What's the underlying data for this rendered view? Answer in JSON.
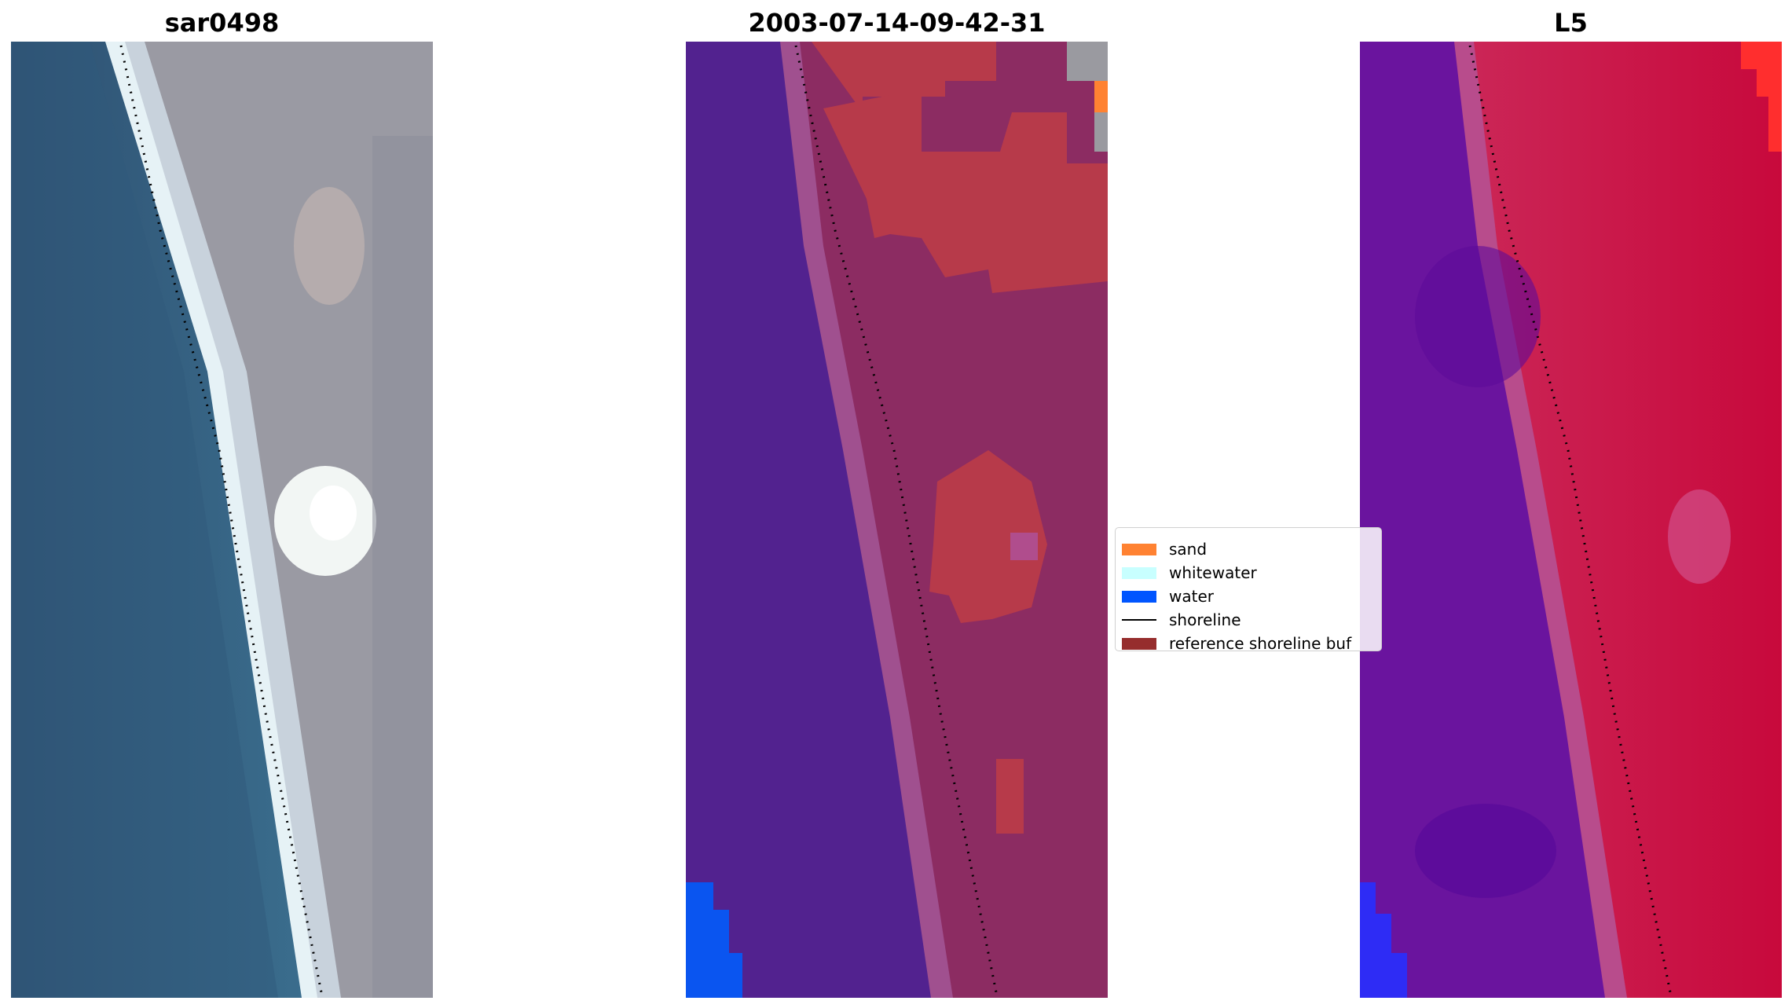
{
  "panels": [
    {
      "title": "sar0498"
    },
    {
      "title": "2003-07-14-09-42-31"
    },
    {
      "title": "L5"
    }
  ],
  "legend": {
    "items": [
      {
        "label": "sand",
        "color": "#ff8232",
        "kind": "patch"
      },
      {
        "label": "whitewater",
        "color": "#c8ffff",
        "kind": "patch"
      },
      {
        "label": "water",
        "color": "#0055ff",
        "kind": "patch"
      },
      {
        "label": "shoreline",
        "color": "#000000",
        "kind": "line"
      },
      {
        "label": "reference shoreline buf",
        "color": "#962d2d",
        "kind": "patch"
      }
    ]
  },
  "colors": {
    "ocean_rgb": "#2f5e82",
    "land_rgb": "#9a9aa3",
    "water_class": "#52228f",
    "land_class": "#8c2c62",
    "sand_class": "#b73a4a",
    "buffer_class": "#a0508f",
    "false_color_water": "#6a149e",
    "false_color_land": "#c8093c"
  }
}
